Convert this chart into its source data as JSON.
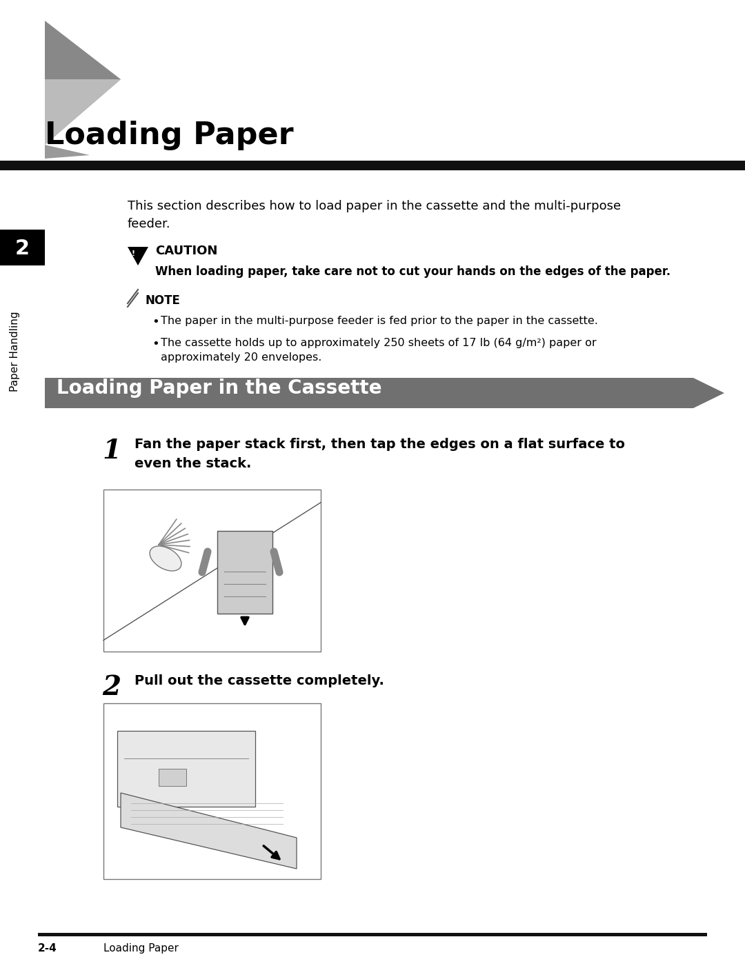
{
  "bg_color": "#ffffff",
  "page_width": 10.8,
  "page_height": 13.88,
  "title": "Loading Paper",
  "section_title": "Loading Paper in the Cassette",
  "intro_text": "This section describes how to load paper in the cassette and the multi-purpose\nfeeder.",
  "caution_title": "CAUTION",
  "caution_text": "When loading paper, take care not to cut your hands on the edges of the paper.",
  "note_title": "NOTE",
  "note_bullet1": "The paper in the multi-purpose feeder is fed prior to the paper in the cassette.",
  "note_bullet2": "The cassette holds up to approximately 250 sheets of 17 lb (64 g/m²) paper or\napproximately 20 envelopes.",
  "step1_num": "1",
  "step1_text": "Fan the paper stack first, then tap the edges on a flat surface to\neven the stack.",
  "step2_num": "2",
  "step2_text": "Pull out the cassette completely.",
  "sidebar_num": "2",
  "sidebar_label": "Paper Handling",
  "footer_num": "2-4",
  "footer_label": "Loading Paper"
}
